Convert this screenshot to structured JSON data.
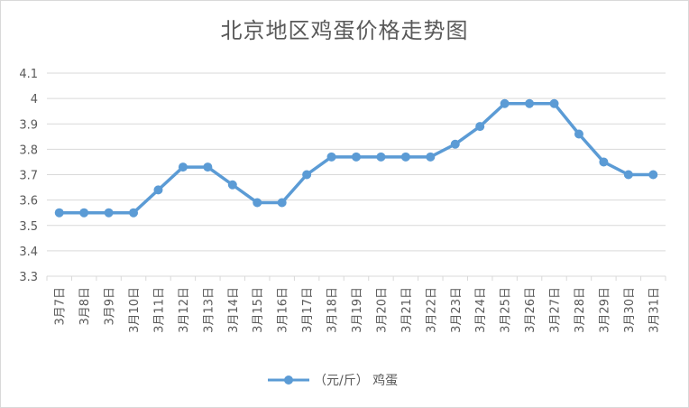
{
  "chart_data": {
    "type": "line",
    "title": "北京地区鸡蛋价格走势图",
    "xlabel": "",
    "ylabel": "",
    "categories": [
      "3月7日",
      "3月8日",
      "3月9日",
      "3月10日",
      "3月11日",
      "3月12日",
      "3月13日",
      "3月14日",
      "3月15日",
      "3月16日",
      "3月17日",
      "3月18日",
      "3月19日",
      "3月20日",
      "3月21日",
      "3月22日",
      "3月23日",
      "3月24日",
      "3月25日",
      "3月26日",
      "3月27日",
      "3月28日",
      "3月29日",
      "3月30日",
      "3月31日"
    ],
    "y_ticks": [
      "3.3",
      "3.4",
      "3.5",
      "3.6",
      "3.7",
      "3.8",
      "3.9",
      "4",
      "4.1"
    ],
    "ylim": [
      3.3,
      4.1
    ],
    "grid": true,
    "legend_position": "bottom",
    "series": [
      {
        "name": "（元/斤） 鸡蛋",
        "color": "#5b9bd5",
        "values": [
          3.55,
          3.55,
          3.55,
          3.55,
          3.64,
          3.73,
          3.73,
          3.66,
          3.59,
          3.59,
          3.7,
          3.77,
          3.77,
          3.77,
          3.77,
          3.77,
          3.82,
          3.89,
          3.98,
          3.98,
          3.98,
          3.86,
          3.75,
          3.7,
          3.7
        ]
      }
    ]
  }
}
